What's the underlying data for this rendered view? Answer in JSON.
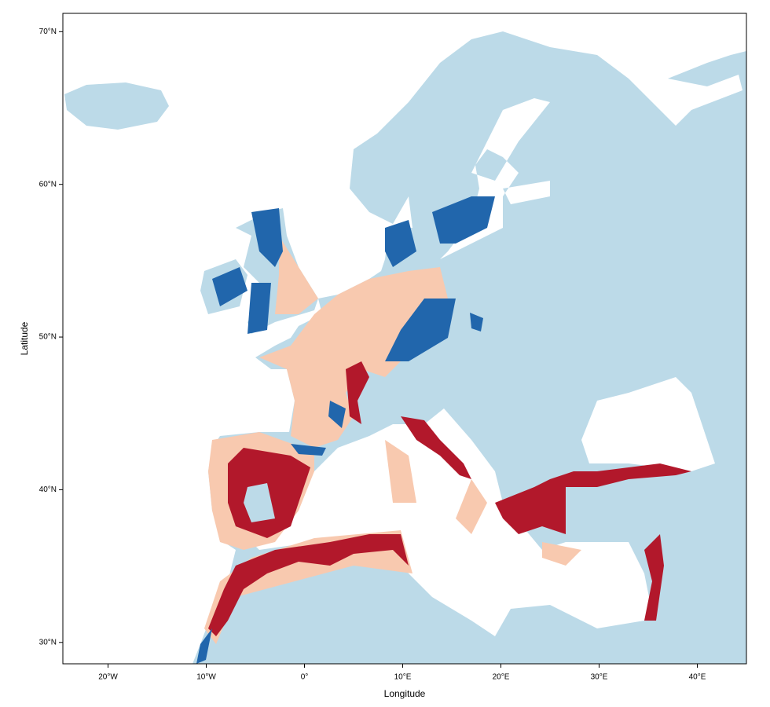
{
  "chart_data": {
    "type": "map",
    "xlabel": "Longitude",
    "ylabel": "Latitude",
    "xlim": [
      -24.6,
      45.0
    ],
    "ylim": [
      28.6,
      71.2
    ],
    "xticks": [
      {
        "value": -20,
        "label": "20°W"
      },
      {
        "value": -10,
        "label": "10°W"
      },
      {
        "value": 0,
        "label": "0°"
      },
      {
        "value": 10,
        "label": "10°E"
      },
      {
        "value": 20,
        "label": "20°E"
      },
      {
        "value": 30,
        "label": "30°E"
      },
      {
        "value": 40,
        "label": "40°E"
      }
    ],
    "yticks": [
      {
        "value": 30,
        "label": "30°N"
      },
      {
        "value": 40,
        "label": "40°N"
      },
      {
        "value": 50,
        "label": "50°N"
      },
      {
        "value": 60,
        "label": "60°N"
      },
      {
        "value": 70,
        "label": "70°N"
      }
    ]
  }
}
